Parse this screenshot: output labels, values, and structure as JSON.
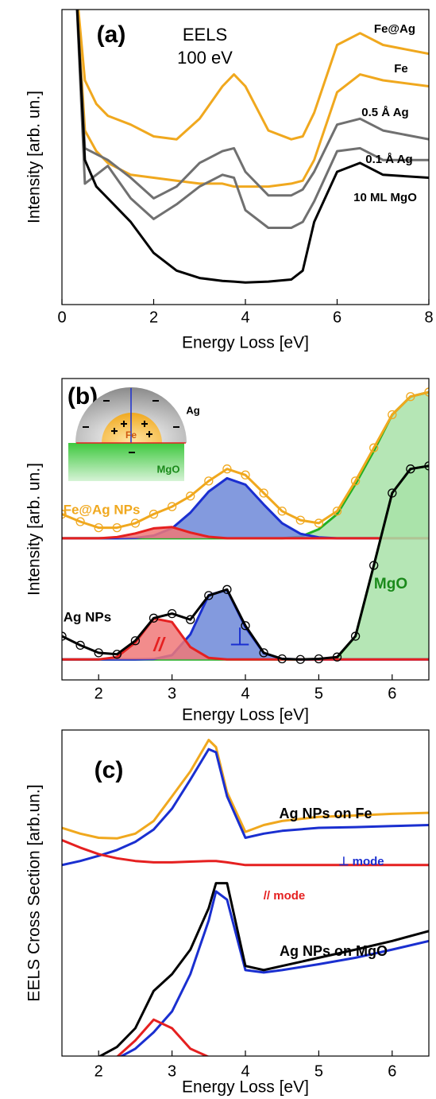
{
  "chart_data": [
    {
      "type": "line",
      "xlabel": "Energy Loss [eV]",
      "ylabel": "Intensity [arb. un.]",
      "annotations": [
        "(a)",
        "EELS",
        "100 eV"
      ],
      "xlim": [
        0,
        8
      ],
      "xticks": [
        0,
        2,
        4,
        6,
        8
      ],
      "ylim": [
        0,
        10
      ],
      "x": [
        0.3,
        0.5,
        0.75,
        1,
        1.5,
        2,
        2.5,
        3,
        3.5,
        3.75,
        4,
        4.5,
        5,
        5.25,
        5.5,
        6,
        6.5,
        7,
        8
      ],
      "series": [
        {
          "name": "Fe@Ag",
          "color": "#f0a81e",
          "values": [
            11,
            7.6,
            6.8,
            6.4,
            6.1,
            5.7,
            5.6,
            6.3,
            7.4,
            7.8,
            7.4,
            5.9,
            5.6,
            5.7,
            6.5,
            8.8,
            9.2,
            8.8,
            8.5
          ]
        },
        {
          "name": "Fe",
          "color": "#f0a81e",
          "values": [
            11,
            5.9,
            5.2,
            4.8,
            4.4,
            4.3,
            4.2,
            4.1,
            4.1,
            4.0,
            4.0,
            4.0,
            4.1,
            4.2,
            4.9,
            7.2,
            7.8,
            7.6,
            7.4
          ]
        },
        {
          "name": "0.5 Å Ag",
          "color": "#707070",
          "values": [
            11,
            5.3,
            5.1,
            4.9,
            4.3,
            3.6,
            4.0,
            4.8,
            5.2,
            5.3,
            4.5,
            3.7,
            3.7,
            3.9,
            4.5,
            6.1,
            6.3,
            5.9,
            5.6
          ]
        },
        {
          "name": "0.1 Å Ag",
          "color": "#707070",
          "values": [
            11,
            4.1,
            4.4,
            4.7,
            3.6,
            2.9,
            3.4,
            4.0,
            4.4,
            4.3,
            3.2,
            2.6,
            2.6,
            2.8,
            3.5,
            5.2,
            5.3,
            4.9,
            4.9
          ]
        },
        {
          "name": "10 ML MgO",
          "color": "#000000",
          "values": [
            11,
            4.9,
            4.0,
            3.6,
            2.8,
            1.75,
            1.15,
            0.9,
            0.8,
            0.78,
            0.75,
            0.78,
            0.85,
            1.15,
            2.8,
            4.5,
            4.8,
            4.4,
            4.3
          ]
        }
      ]
    },
    {
      "type": "line",
      "xlabel": "Energy Loss [eV]",
      "ylabel": "Intensity [arb. un.]",
      "annotations": [
        "(b)",
        "Ag",
        "Fe",
        "MgO"
      ],
      "xlim": [
        1.5,
        6.5
      ],
      "xticks": [
        2,
        3,
        4,
        5,
        6
      ],
      "ylim": [
        0,
        10
      ],
      "x": [
        1.5,
        1.75,
        2,
        2.25,
        2.5,
        2.75,
        3,
        3.25,
        3.5,
        3.75,
        4,
        4.25,
        4.5,
        4.75,
        5,
        5.25,
        5.5,
        5.75,
        6,
        6.25,
        6.5
      ],
      "series": [
        {
          "color": "#22b022",
          "fill": "#a8e2a8",
          "values": [
            4.7,
            4.7,
            4.7,
            4.7,
            4.7,
            4.7,
            4.7,
            4.7,
            4.7,
            4.7,
            4.7,
            4.7,
            4.7,
            4.75,
            5.0,
            5.5,
            6.5,
            7.6,
            8.8,
            9.4,
            9.55
          ]
        },
        {
          "color": "#1a2fd0",
          "fill": "#6d88d8",
          "values": [
            4.7,
            4.7,
            4.7,
            4.7,
            4.71,
            4.79,
            5.03,
            5.55,
            6.25,
            6.69,
            6.48,
            5.82,
            5.2,
            4.85,
            4.73,
            4.7,
            4.7,
            4.7,
            4.7,
            4.7,
            4.7
          ]
        },
        {
          "color": "#e52020",
          "fill": "#f07878",
          "values": [
            4.7,
            4.7,
            4.7,
            4.74,
            4.86,
            5.03,
            5.07,
            4.89,
            4.75,
            4.7,
            4.7,
            4.7,
            4.7,
            4.7,
            4.7,
            4.7,
            4.7,
            4.7,
            4.7,
            4.7,
            4.7
          ]
        },
        {
          "name": "Fe@Ag NPs",
          "color": "#f0a81e",
          "markers": true,
          "values": [
            5.5,
            5.25,
            5.05,
            5.05,
            5.2,
            5.5,
            5.75,
            6.1,
            6.6,
            7.0,
            6.8,
            6.2,
            5.6,
            5.3,
            5.2,
            5.6,
            6.6,
            7.7,
            8.8,
            9.4,
            9.55
          ]
        },
        {
          "name": "MgO",
          "color": "#22b022",
          "fill": "#a8e2a8",
          "values": [
            0.68,
            0.68,
            0.68,
            0.68,
            0.68,
            0.68,
            0.68,
            0.68,
            0.68,
            0.68,
            0.68,
            0.68,
            0.68,
            0.68,
            0.68,
            0.74,
            1.45,
            3.8,
            6.2,
            7.0,
            7.1
          ]
        },
        {
          "name": "⊥",
          "color": "#1a2fd0",
          "fill": "#6d88d8",
          "values": [
            0.68,
            0.68,
            0.68,
            0.68,
            0.68,
            0.69,
            0.82,
            1.51,
            2.81,
            2.99,
            1.75,
            0.89,
            0.7,
            0.68,
            0.68,
            0.68,
            0.68,
            0.68,
            0.68,
            0.68,
            0.68
          ]
        },
        {
          "name": "//",
          "color": "#e52020",
          "fill": "#f07878",
          "values": [
            0.68,
            0.68,
            0.68,
            0.76,
            1.24,
            2.04,
            1.92,
            1.09,
            0.73,
            0.68,
            0.68,
            0.68,
            0.68,
            0.68,
            0.68,
            0.68,
            0.68,
            0.68,
            0.68,
            0.68,
            0.68
          ]
        },
        {
          "name": "Ag NPs",
          "color": "#000000",
          "markers": true,
          "values": [
            1.45,
            1.15,
            0.9,
            0.85,
            1.3,
            2.05,
            2.2,
            2.0,
            2.8,
            3.0,
            1.8,
            0.9,
            0.7,
            0.68,
            0.7,
            0.76,
            1.45,
            3.8,
            6.2,
            7.0,
            7.1
          ]
        }
      ]
    },
    {
      "type": "line",
      "xlabel": "Energy Loss [eV]",
      "ylabel": "EELS Cross Section [arb.un.]",
      "annotations": [
        "(c)"
      ],
      "xlim": [
        1.5,
        6.5
      ],
      "xticks": [
        2,
        3,
        4,
        5,
        6
      ],
      "ylim": [
        0,
        10
      ],
      "x": [
        1.5,
        1.75,
        2,
        2.25,
        2.5,
        2.75,
        3,
        3.25,
        3.5,
        3.6,
        3.75,
        4,
        4.25,
        4.5,
        5,
        5.5,
        6,
        6.5
      ],
      "series": [
        {
          "name": "Ag NPs on Fe",
          "color": "#f0a81e",
          "values": [
            7.14,
            6.97,
            6.85,
            6.83,
            6.97,
            7.34,
            8.06,
            8.79,
            9.71,
            9.5,
            8.18,
            7.02,
            7.22,
            7.34,
            7.46,
            7.5,
            7.55,
            7.58
          ]
        },
        {
          "name": "⊥ mode",
          "color": "#1a2fd0",
          "values": [
            6.05,
            6.17,
            6.32,
            6.49,
            6.73,
            7.09,
            7.7,
            8.55,
            9.44,
            9.35,
            8.06,
            6.85,
            6.97,
            7.05,
            7.14,
            7.16,
            7.19,
            7.22
          ]
        },
        {
          "name": "// mode",
          "color": "#e52020",
          "values": [
            6.78,
            6.56,
            6.37,
            6.25,
            6.17,
            6.13,
            6.13,
            6.15,
            6.17,
            6.17,
            6.13,
            6.05,
            6.05,
            6.05,
            6.05,
            6.05,
            6.05,
            6.05
          ]
        },
        {
          "color": "#1a2fd0",
          "values": [
            0.07,
            0.15,
            0.24,
            0.39,
            0.68,
            1.16,
            1.77,
            2.86,
            4.43,
            5.28,
            5.04,
            2.98,
            2.91,
            2.98,
            3.15,
            3.34,
            3.58,
            3.83
          ]
        },
        {
          "color": "#e52020",
          "values": [
            0.07,
            0.15,
            0.24,
            0.44,
            0.92,
            1.53,
            1.28,
            0.68,
            0.44,
            0.39,
            0.36,
            0.31,
            0.34,
            0.31,
            0.31,
            0.31,
            0.31,
            0.31
          ]
        },
        {
          "name": "Ag NPs on MgO",
          "color": "#000000",
          "values": [
            0.15,
            0.24,
            0.44,
            0.73,
            1.28,
            2.37,
            2.86,
            3.58,
            4.79,
            5.52,
            5.52,
            3.1,
            2.98,
            3.1,
            3.34,
            3.58,
            3.83,
            4.12
          ]
        }
      ]
    }
  ]
}
